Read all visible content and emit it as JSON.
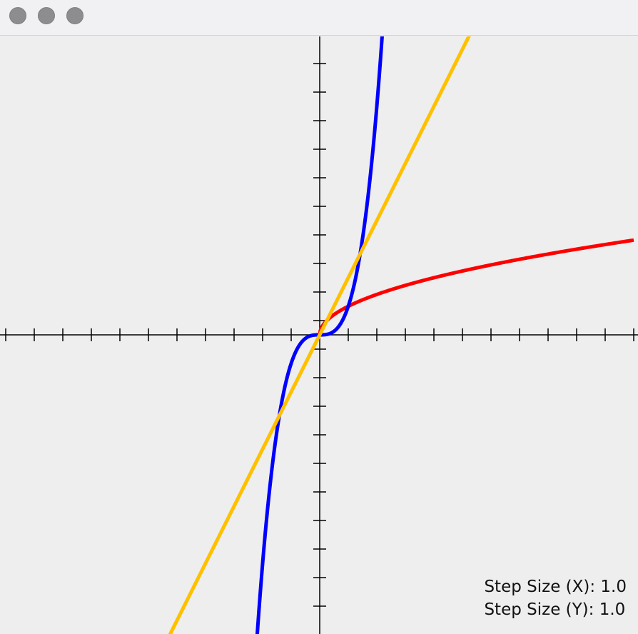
{
  "window": {
    "buttons": [
      {
        "name": "close-button"
      },
      {
        "name": "minimize-button"
      },
      {
        "name": "zoom-button"
      }
    ]
  },
  "status": {
    "step_x_label": "Step Size (X):",
    "step_x_value": "1.0",
    "step_y_label": "Step Size (Y):",
    "step_y_value": "1.0"
  },
  "chart_data": {
    "type": "line",
    "title": "",
    "xlabel": "",
    "ylabel": "",
    "xlim": [
      -11,
      11
    ],
    "ylim": [
      -10.5,
      10.5
    ],
    "step_x": 1.0,
    "step_y": 1.0,
    "grid": false,
    "axes_color": "#000000",
    "series": [
      {
        "function": "sqrt(x)",
        "color": "#ff0000",
        "x": [
          0,
          0.25,
          0.5,
          1,
          2,
          3,
          4,
          5,
          6,
          7,
          8,
          9,
          10,
          11
        ],
        "y": [
          0,
          0.5,
          0.707,
          1,
          1.414,
          1.732,
          2,
          2.236,
          2.449,
          2.646,
          2.828,
          3,
          3.162,
          3.317
        ]
      },
      {
        "function": "x^3",
        "color": "#0000ff",
        "x": [
          -2.2,
          -2,
          -1.75,
          -1.5,
          -1.25,
          -1,
          -0.75,
          -0.5,
          -0.25,
          0,
          0.25,
          0.5,
          0.75,
          1,
          1.25,
          1.5,
          1.75,
          2,
          2.2
        ],
        "y": [
          -10.648,
          -8,
          -5.359,
          -3.375,
          -1.953,
          -1,
          -0.422,
          -0.125,
          -0.016,
          0,
          0.016,
          0.125,
          0.422,
          1,
          1.953,
          3.375,
          5.359,
          8,
          10.648
        ]
      },
      {
        "function": "2x",
        "color": "#ffc000",
        "x": [
          -5.25,
          5.25
        ],
        "y": [
          -10.5,
          10.5
        ]
      }
    ]
  }
}
